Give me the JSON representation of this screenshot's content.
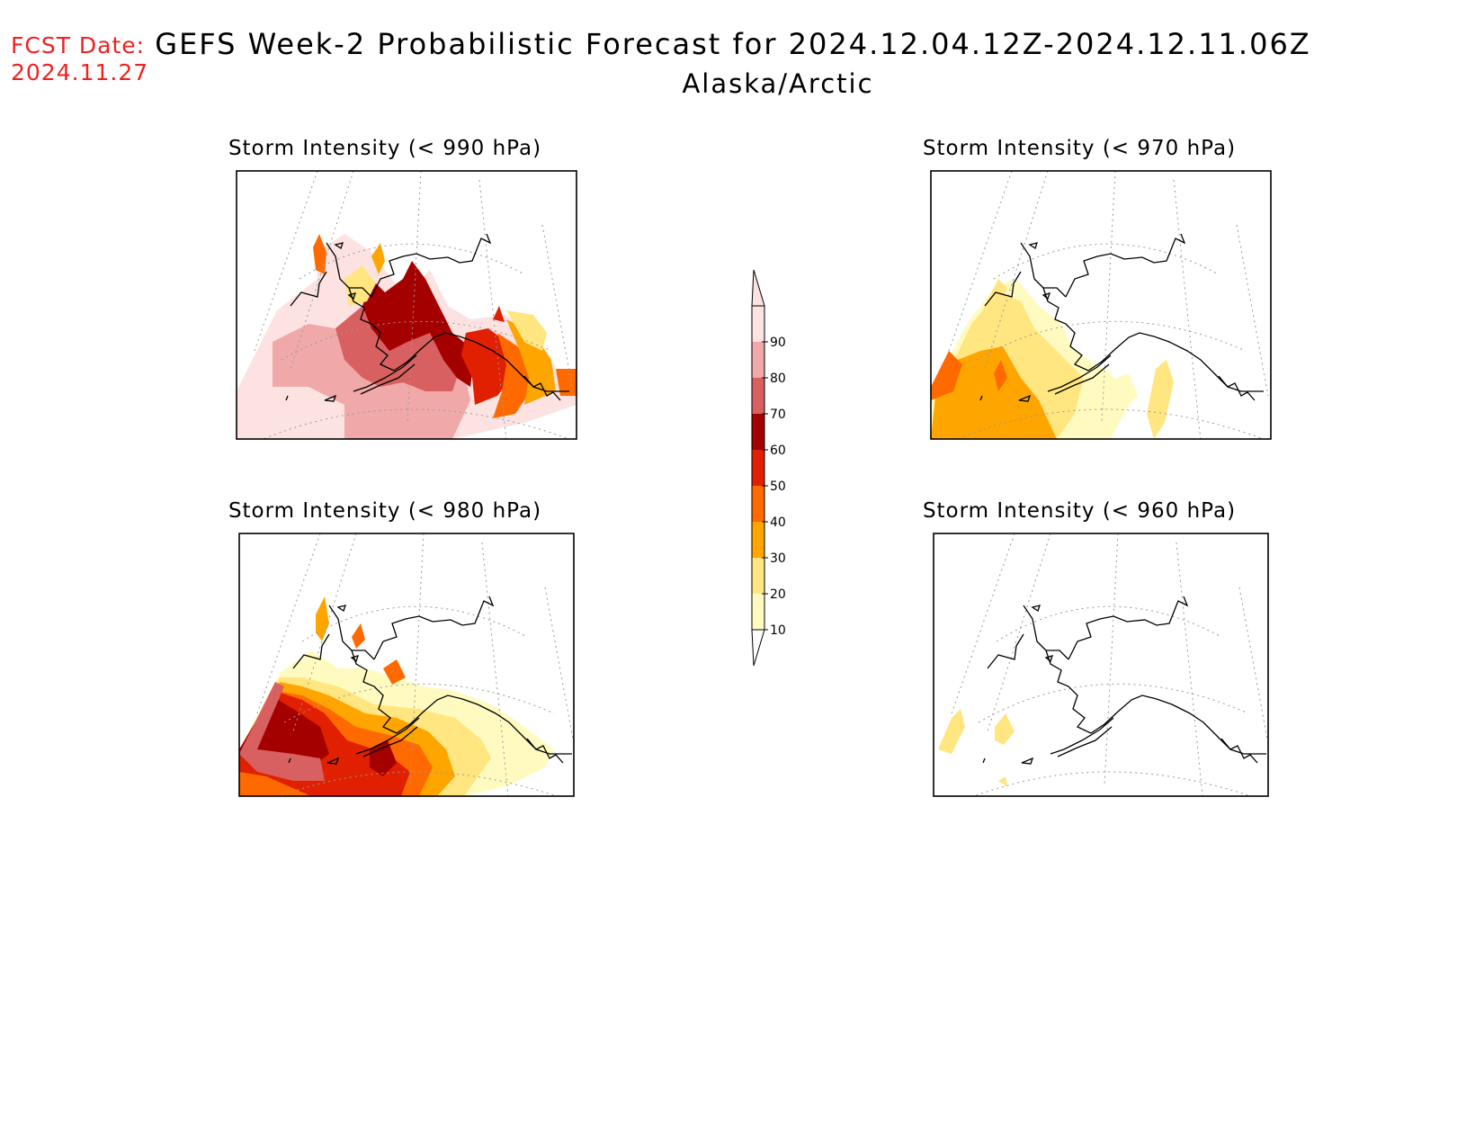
{
  "fcst": {
    "label": "FCST Date:",
    "date": "2024.11.27"
  },
  "header": {
    "title": "GEFS Week-2 Probabilistic Forecast for 2024.12.04.12Z-2024.12.11.06Z",
    "subtitle": "Alaska/Arctic"
  },
  "panels": [
    {
      "id": "p990",
      "title": "Storm Intensity (< 990 hPa)"
    },
    {
      "id": "p970",
      "title": "Storm Intensity (< 970 hPa)"
    },
    {
      "id": "p980",
      "title": "Storm Intensity (< 980 hPa)"
    },
    {
      "id": "p960",
      "title": "Storm Intensity (< 960 hPa)"
    }
  ],
  "legend": {
    "levels": [
      "10",
      "20",
      "30",
      "40",
      "50",
      "60",
      "70",
      "80",
      "90"
    ],
    "colors": [
      "#fffbc0",
      "#ffe680",
      "#ffa500",
      "#ff6a00",
      "#e02000",
      "#a50000",
      "#d86060",
      "#f0a8a8",
      "#fde2e2"
    ]
  }
}
